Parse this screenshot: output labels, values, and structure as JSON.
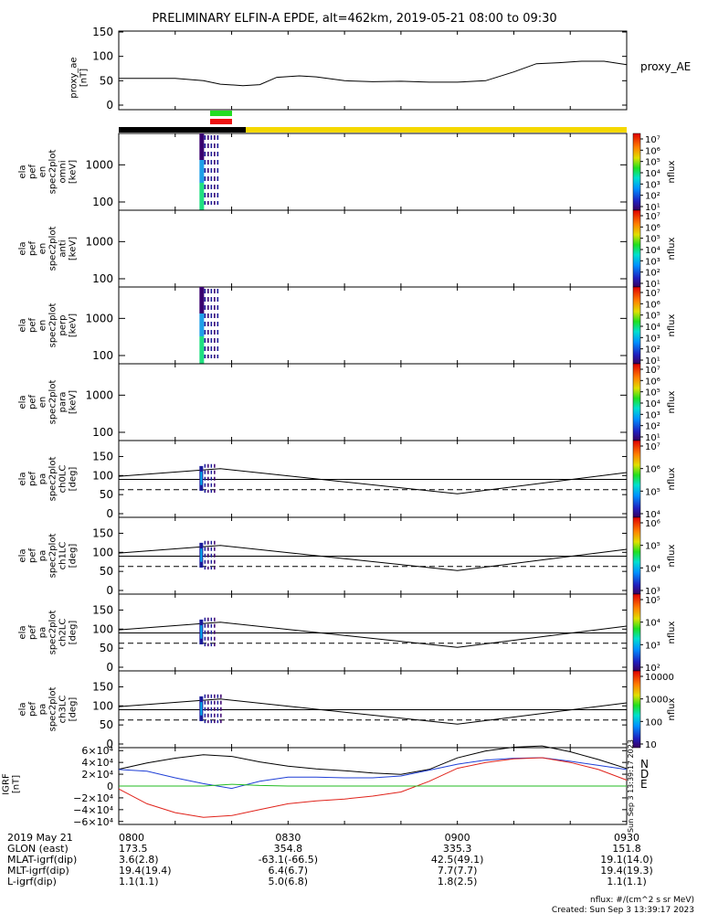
{
  "title": "PRELIMINARY ELFIN-A EPDE, alt=462km, 2019-05-21 08:00 to 09:30",
  "colors": {
    "black_bar": "#000000",
    "yellow_bar": "#f5d800",
    "green_marker": "#22dd22",
    "red_marker": "#ee1111",
    "bx": "#1f3fd6",
    "by": "#e0231b",
    "bz": "#22bb22",
    "btot": "#000000"
  },
  "proxy_ae": {
    "ylabel": "proxy_ae\n[nT]",
    "legend": "proxy_AE",
    "ticks": [
      "150",
      "100",
      "50",
      "0"
    ]
  },
  "spec_panels": [
    {
      "ylabel": [
        "ela",
        "pef",
        "en",
        "spec2plot",
        "omni",
        "[keV]"
      ],
      "ticks": [
        "1000",
        "100"
      ],
      "cbar_ticks": [
        "10⁷",
        "10⁶",
        "10⁵",
        "10⁴",
        "10³",
        "10²",
        "10¹"
      ],
      "cbar_label": "nflux"
    },
    {
      "ylabel": [
        "ela",
        "pef",
        "en",
        "spec2plot",
        "anti",
        "[keV]"
      ],
      "ticks": [
        "1000",
        "100"
      ],
      "cbar_ticks": [
        "10⁷",
        "10⁶",
        "10⁵",
        "10⁴",
        "10³",
        "10²",
        "10¹"
      ],
      "cbar_label": "nflux"
    },
    {
      "ylabel": [
        "ela",
        "pef",
        "en",
        "spec2plot",
        "perp",
        "[keV]"
      ],
      "ticks": [
        "1000",
        "100"
      ],
      "cbar_ticks": [
        "10⁷",
        "10⁶",
        "10⁵",
        "10⁴",
        "10³",
        "10²",
        "10¹"
      ],
      "cbar_label": "nflux"
    },
    {
      "ylabel": [
        "ela",
        "pef",
        "en",
        "spec2plot",
        "para",
        "[keV]"
      ],
      "ticks": [
        "1000",
        "100"
      ],
      "cbar_ticks": [
        "10⁷",
        "10⁶",
        "10⁵",
        "10⁴",
        "10³",
        "10²",
        "10¹"
      ],
      "cbar_label": "nflux"
    }
  ],
  "pa_panels": [
    {
      "ylabel": [
        "ela",
        "pef",
        "pa",
        "spec2plot",
        "ch0LC",
        "[deg]"
      ],
      "ticks": [
        "150",
        "100",
        "50",
        "0"
      ],
      "cbar_ticks": [
        "10⁷",
        "10⁶",
        "10⁵",
        "10⁴"
      ],
      "cbar_label": "nflux"
    },
    {
      "ylabel": [
        "ela",
        "pef",
        "pa",
        "spec2plot",
        "ch1LC",
        "[deg]"
      ],
      "ticks": [
        "150",
        "100",
        "50",
        "0"
      ],
      "cbar_ticks": [
        "10⁶",
        "10⁵",
        "10⁴",
        "10³"
      ],
      "cbar_label": "nflux"
    },
    {
      "ylabel": [
        "ela",
        "pef",
        "pa",
        "spec2plot",
        "ch2LC",
        "[deg]"
      ],
      "ticks": [
        "150",
        "100",
        "50",
        "0"
      ],
      "cbar_ticks": [
        "10⁵",
        "10⁴",
        "10³",
        "10²"
      ],
      "cbar_label": "nflux"
    },
    {
      "ylabel": [
        "ela",
        "pef",
        "pa",
        "spec2plot",
        "ch3LC",
        "[deg]"
      ],
      "ticks": [
        "150",
        "100",
        "50",
        "0"
      ],
      "cbar_ticks": [
        "10000",
        "1000",
        "100",
        "10"
      ],
      "cbar_label": "nflux"
    }
  ],
  "igrf": {
    "ylabel": "IGRF\n[nT]",
    "ticks": [
      "6×10⁴",
      "4×10⁴",
      "2×10⁴",
      "0",
      "−2×10⁴",
      "−4×10⁴",
      "−6×10⁴"
    ],
    "legend": [
      "N",
      "D",
      "E"
    ],
    "stamp": "Sun Sep  3 13:39:17 2023"
  },
  "footer": {
    "rows": [
      {
        "label": "2019 May 21",
        "values": [
          "0800",
          "0830",
          "0900",
          "0930"
        ]
      },
      {
        "label": "GLON (east)",
        "values": [
          "173.5",
          "354.8",
          "335.3",
          "151.8"
        ]
      },
      {
        "label": "MLAT-igrf(dip)",
        "values": [
          "3.6(2.8)",
          "-63.1(-66.5)",
          "42.5(49.1)",
          "19.1(14.0)"
        ]
      },
      {
        "label": "MLT-igrf(dip)",
        "values": [
          "19.4(19.4)",
          "6.4(6.7)",
          "7.7(7.7)",
          "19.4(19.3)"
        ]
      },
      {
        "label": "L-igrf(dip)",
        "values": [
          "1.1(1.1)",
          "5.0(6.8)",
          "1.8(2.5)",
          "1.1(1.1)"
        ]
      }
    ],
    "note1": "nflux: #/(cm^2 s sr MeV)",
    "note2": "Created: Sun Sep  3 13:39:17 2023"
  },
  "chart_data": [
    {
      "type": "line",
      "title": "PRELIMINARY ELFIN-A EPDE, alt=462km, 2019-05-21 08:00 to 09:30",
      "ylabel": "proxy_ae [nT]",
      "ylim": [
        0,
        150
      ],
      "x_minutes_after_0800": [
        0,
        5,
        10,
        15,
        18,
        22,
        25,
        28,
        32,
        35,
        40,
        45,
        50,
        55,
        60,
        65,
        70,
        74,
        78,
        82,
        86,
        90
      ],
      "series": [
        {
          "name": "proxy_AE",
          "values": [
            55,
            55,
            55,
            50,
            43,
            40,
            42,
            57,
            60,
            58,
            50,
            48,
            49,
            47,
            47,
            50,
            68,
            85,
            87,
            90,
            90,
            83
          ]
        }
      ]
    },
    {
      "type": "heatmap",
      "panels": [
        "omni",
        "anti",
        "perp",
        "para"
      ],
      "ylabel": "[keV]",
      "ylim": [
        60,
        7000
      ],
      "yscale": "log",
      "active_interval_minutes": [
        14.3,
        16.0
      ]
    },
    {
      "type": "line",
      "panels": [
        "ch0LC",
        "ch1LC",
        "ch2LC",
        "ch3LC"
      ],
      "ylabel": "[deg]",
      "ylim": [
        0,
        180
      ],
      "x_minutes_after_0800": [
        0,
        18,
        60,
        90
      ],
      "solid_series": [
        98,
        118,
        52,
        108
      ],
      "dashed_series": [
        63,
        63,
        63,
        63
      ],
      "horizontal_line": 90
    },
    {
      "type": "line",
      "ylabel": "IGRF [nT]",
      "ylim": [
        -65000,
        65000
      ],
      "x_minutes_after_0800": [
        0,
        5,
        10,
        15,
        20,
        25,
        30,
        35,
        40,
        45,
        50,
        55,
        60,
        65,
        70,
        75,
        80,
        85,
        90
      ],
      "series": [
        {
          "name": "N",
          "values": [
            28000,
            25000,
            14000,
            4000,
            -4000,
            8000,
            15000,
            15000,
            14000,
            14000,
            17000,
            27000,
            37000,
            44000,
            47000,
            48000,
            42000,
            35000,
            28000
          ]
        },
        {
          "name": "D",
          "values": [
            -5000,
            -30000,
            -45000,
            -53000,
            -50000,
            -40000,
            -30000,
            -25000,
            -22000,
            -17000,
            -10000,
            8000,
            30000,
            40000,
            46000,
            48000,
            40000,
            28000,
            10000
          ]
        },
        {
          "name": "E",
          "values": [
            0,
            0,
            0,
            0,
            3000,
            1000,
            0,
            0,
            0,
            0,
            0,
            0,
            0,
            0,
            0,
            0,
            0,
            0,
            0
          ]
        }
      ]
    }
  ]
}
